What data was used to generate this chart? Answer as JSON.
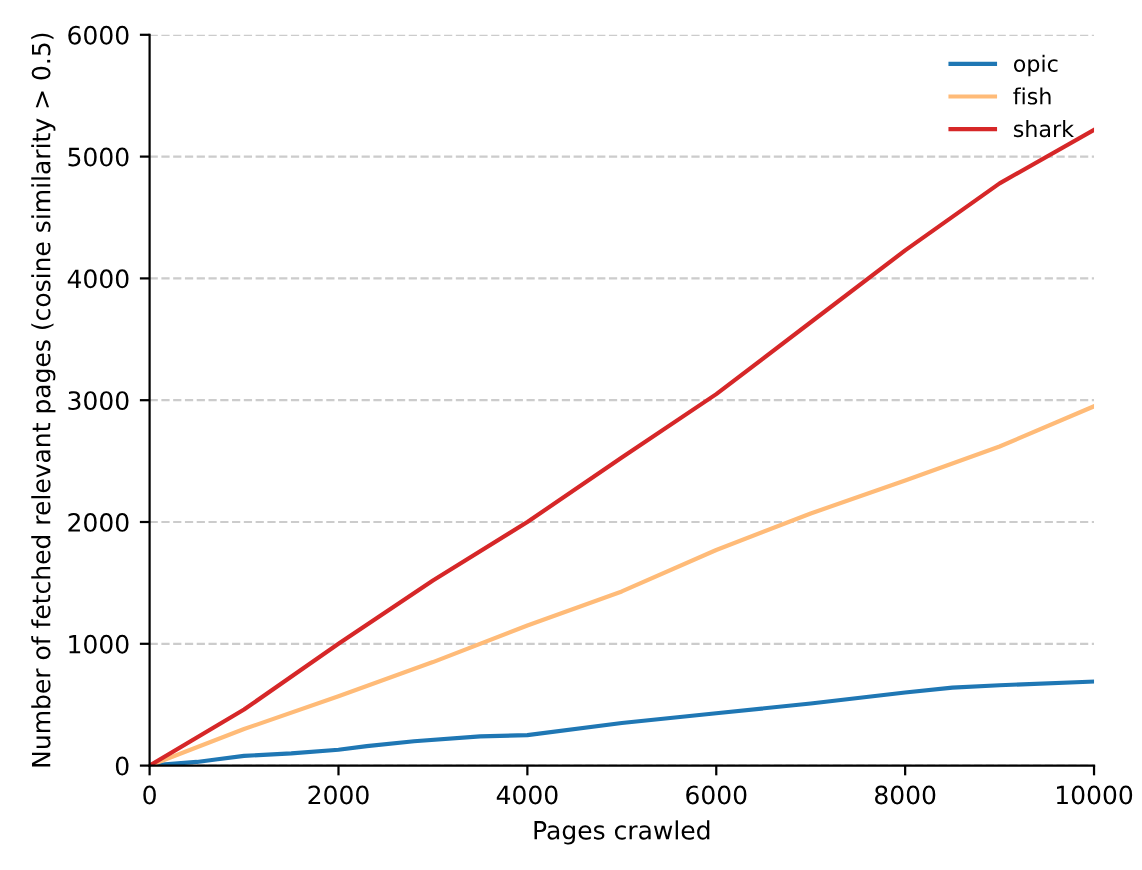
{
  "chart_data": {
    "type": "line",
    "xlabel": "Pages crawled",
    "ylabel": "Number of fetched relevant pages (cosine similarity > 0.5)",
    "xlim": [
      0,
      10000
    ],
    "ylim": [
      0,
      6000
    ],
    "xticks": [
      0,
      2000,
      4000,
      6000,
      8000,
      10000
    ],
    "yticks": [
      0,
      1000,
      2000,
      3000,
      4000,
      5000,
      6000
    ],
    "grid": "y",
    "legend": "top right",
    "marker": "none",
    "line_style": "solid",
    "series": [
      {
        "name": "opic",
        "color": "#1f77b4",
        "x": [
          0,
          500,
          700,
          1000,
          1500,
          2000,
          2300,
          2800,
          3500,
          4000,
          5000,
          6000,
          7000,
          8000,
          8500,
          9000,
          10000
        ],
        "values": [
          0,
          30,
          50,
          80,
          100,
          130,
          160,
          200,
          240,
          250,
          350,
          430,
          510,
          600,
          640,
          660,
          690
        ]
      },
      {
        "name": "fish",
        "color": "#ffbb78",
        "x": [
          0,
          1000,
          2000,
          3000,
          4000,
          5000,
          6000,
          7000,
          8000,
          9000,
          10000
        ],
        "values": [
          0,
          300,
          570,
          850,
          1150,
          1430,
          1770,
          2070,
          2340,
          2620,
          2950
        ]
      },
      {
        "name": "shark",
        "color": "#d62728",
        "x": [
          0,
          1000,
          2000,
          3000,
          4000,
          5000,
          6000,
          7000,
          8000,
          9000,
          10000
        ],
        "values": [
          0,
          460,
          1000,
          1520,
          2000,
          2530,
          3050,
          3640,
          4230,
          4780,
          5220
        ]
      }
    ]
  }
}
